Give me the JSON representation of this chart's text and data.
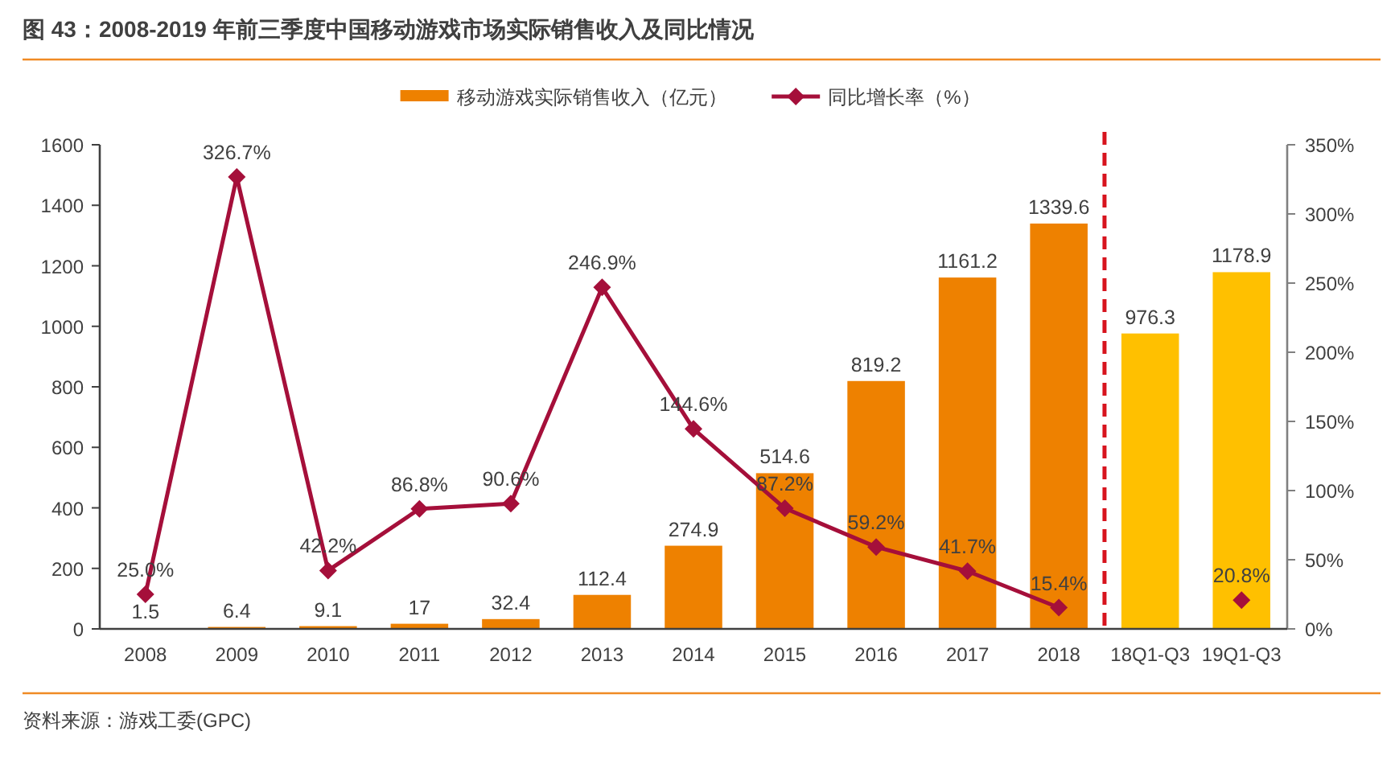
{
  "chart_data": {
    "type": "bar",
    "title": "图 43：2008-2019 年前三季度中国移动游戏市场实际销售收入及同比情况",
    "categories": [
      "2008",
      "2009",
      "2010",
      "2011",
      "2012",
      "2013",
      "2014",
      "2015",
      "2016",
      "2017",
      "2018",
      "18Q1-Q3",
      "19Q1-Q3"
    ],
    "series": [
      {
        "name": "移动游戏实际销售收入（亿元）",
        "type": "bar",
        "color": "#ee8100",
        "colors": [
          "#ee8100",
          "#ee8100",
          "#ee8100",
          "#ee8100",
          "#ee8100",
          "#ee8100",
          "#ee8100",
          "#ee8100",
          "#ee8100",
          "#ee8100",
          "#ee8100",
          "#ffc000",
          "#ffc000"
        ],
        "values": [
          1.5,
          6.4,
          9.1,
          17,
          32.4,
          112.4,
          274.9,
          514.6,
          819.2,
          1161.2,
          1339.6,
          976.3,
          1178.9
        ],
        "value_labels": [
          "1.5",
          "6.4",
          "9.1",
          "17",
          "32.4",
          "112.4",
          "274.9",
          "514.6",
          "819.2",
          "1161.2",
          "1339.6",
          "976.3",
          "1178.9"
        ]
      },
      {
        "name": "同比增长率（%）",
        "type": "line",
        "axis": "y2",
        "color": "#a50f3a",
        "marker": "diamond",
        "line_style": "solid",
        "values": [
          25.0,
          326.7,
          42.2,
          86.8,
          90.6,
          246.9,
          144.6,
          87.2,
          59.2,
          41.7,
          15.4,
          null,
          20.8
        ],
        "value_labels": [
          "25.0%",
          "326.7%",
          "42.2%",
          "86.8%",
          "90.6%",
          "246.9%",
          "144.6%",
          "87.2%",
          "59.2%",
          "41.7%",
          "15.4%",
          null,
          "20.8%"
        ]
      }
    ],
    "ylim": [
      0,
      1600
    ],
    "yticks": [
      0,
      200,
      400,
      600,
      800,
      1000,
      1200,
      1400,
      1600
    ],
    "y2lim": [
      0,
      350
    ],
    "y2ticks": [
      {
        "value": 0,
        "label": "0%"
      },
      {
        "value": 50,
        "label": "50%"
      },
      {
        "value": 100,
        "label": "100%"
      },
      {
        "value": 150,
        "label": "150%"
      },
      {
        "value": 200,
        "label": "200%"
      },
      {
        "value": 250,
        "label": "250%"
      },
      {
        "value": 300,
        "label": "300%"
      },
      {
        "value": 350,
        "label": "350%"
      }
    ],
    "legend": "top",
    "annotations": [
      "资料来源：游戏工委(GPC)"
    ]
  }
}
